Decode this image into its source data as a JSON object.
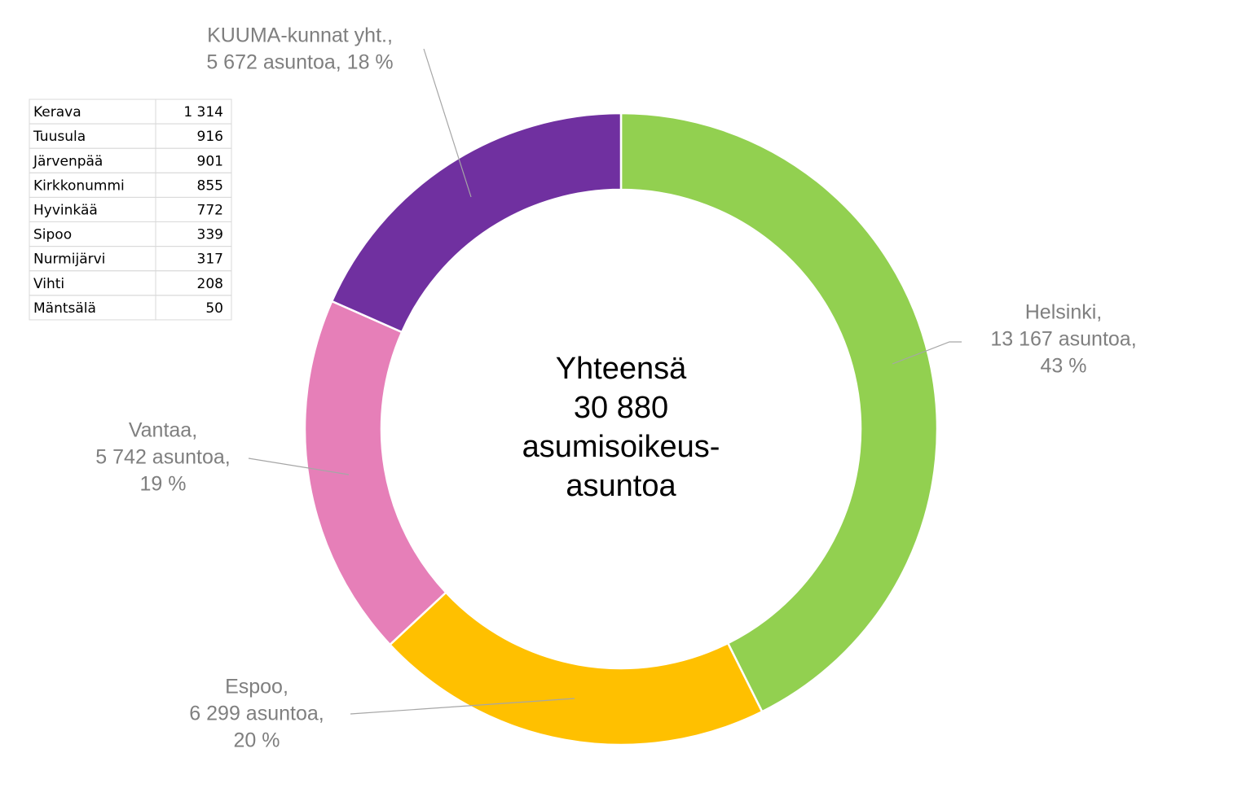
{
  "chart_data": {
    "type": "donut",
    "categories": [
      "Helsinki,",
      "Espoo,",
      "Vantaa,",
      "KUUMA-kunnat yht.,"
    ],
    "values": [
      13167,
      6299,
      5742,
      5672
    ],
    "value_labels": [
      [
        "13 167 asuntoa,",
        "43 %"
      ],
      [
        "6 299  asuntoa,",
        "20 %"
      ],
      [
        "5 742 asuntoa,",
        "19 %"
      ],
      [
        "5 672 asuntoa, 18 %"
      ]
    ],
    "colors": [
      "#92d050",
      "#ffc000",
      "#e67fb8",
      "#7030a0"
    ],
    "center_text": [
      "Yhteensä",
      "30 880",
      "asumisoikeus-",
      "asuntoa"
    ]
  },
  "table": {
    "rows": [
      [
        "Kerava",
        "1 314"
      ],
      [
        "Tuusula",
        "916"
      ],
      [
        "Järvenpää",
        "901"
      ],
      [
        "Kirkkonummi",
        "855"
      ],
      [
        "Hyvinkää",
        "772"
      ],
      [
        "Sipoo",
        "339"
      ],
      [
        "Nurmijärvi",
        "317"
      ],
      [
        "Vihti",
        "208"
      ],
      [
        "Mäntsälä",
        "50"
      ]
    ]
  }
}
